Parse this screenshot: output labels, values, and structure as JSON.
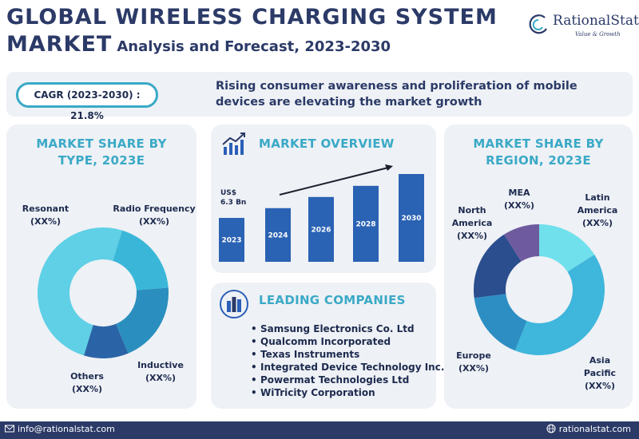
{
  "header": {
    "title_line1": "GLOBAL WIRELESS CHARGING SYSTEM",
    "title_line2_big": "MARKET",
    "title_line2_sub": "Analysis and Forecast, 2023-2030",
    "logo_name": "RationalStat",
    "logo_tagline": "Value & Growth"
  },
  "banner": {
    "cagr": "CAGR (2023-2030) : 21.8%",
    "text": "Rising consumer awareness and proliferation of mobile devices are elevating the market growth"
  },
  "colors": {
    "navy": "#2b3a67",
    "teal": "#3aa9c7",
    "panel": "#eef1f5",
    "bar_blue": "#2a62b4"
  },
  "chart_data": [
    {
      "type": "pie",
      "title": "MARKET SHARE BY TYPE, 2023E",
      "categories": [
        "Resonant",
        "Radio Frequency",
        "Inductive",
        "Others"
      ],
      "value_labels": [
        "(XX%)",
        "(XX%)",
        "(XX%)",
        "(XX%)"
      ],
      "values": [
        50,
        19,
        20,
        11
      ],
      "colors": [
        "#5fd0e6",
        "#3ab7d8",
        "#2a8fbf",
        "#2b64a6"
      ]
    },
    {
      "type": "bar",
      "title": "MARKET OVERVIEW",
      "categories": [
        "2023",
        "2024",
        "2026",
        "2028",
        "2030"
      ],
      "values": [
        6.3,
        7.7,
        9.3,
        10.9,
        12.6
      ],
      "annotation": "US$ 6.3 Bn",
      "trend_arrow": true
    },
    {
      "type": "pie",
      "title": "MARKET SHARE BY REGION, 2023E",
      "categories": [
        "Latin America",
        "Asia Pacific",
        "Europe",
        "North America",
        "MEA"
      ],
      "value_labels": [
        "(XX%)",
        "(XX%)",
        "(XX%)",
        "(XX%)",
        "(XX%)"
      ],
      "values": [
        16,
        40,
        17,
        18,
        9
      ],
      "colors": [
        "#6fe0ec",
        "#3fb6dc",
        "#2d8ec4",
        "#2a4e8e",
        "#6e5a9e"
      ]
    }
  ],
  "type_panel": {
    "title_line1": "MARKET SHARE BY",
    "title_line2": "TYPE, 2023E",
    "resonant": "Resonant",
    "resonant_val": "(XX%)",
    "rf_label": "Radio Frequency",
    "rf_val": "(XX%)",
    "inductive": "Inductive",
    "inductive_val": "(XX%)",
    "others": "Others",
    "others_val": "(XX%)"
  },
  "overview_panel": {
    "title": "MARKET OVERVIEW",
    "usd_line1": "US$",
    "usd_line2": "6.3 Bn"
  },
  "region_panel": {
    "title_line1": "MARKET SHARE BY",
    "title_line2": "REGION, 2023E",
    "mea": "MEA",
    "mea_val": "(XX%)",
    "latin_l1": "Latin",
    "latin_l2": "America",
    "latin_val": "(XX%)",
    "north_l1": "North",
    "north_l2": "America",
    "north_val": "(XX%)",
    "europe": "Europe",
    "europe_val": "(XX%)",
    "asia_l1": "Asia",
    "asia_l2": "Pacific",
    "asia_val": "(XX%)"
  },
  "companies_panel": {
    "title": "LEADING COMPANIES",
    "items": [
      "Samsung Electronics Co. Ltd",
      "Qualcomm Incorporated",
      "Texas Instruments",
      "Integrated Device Technology Inc.",
      "Powermat Technologies Ltd",
      "WiTricity Corporation"
    ]
  },
  "footer": {
    "email": "info@rationalstat.com",
    "website": "rationalstat.com"
  }
}
